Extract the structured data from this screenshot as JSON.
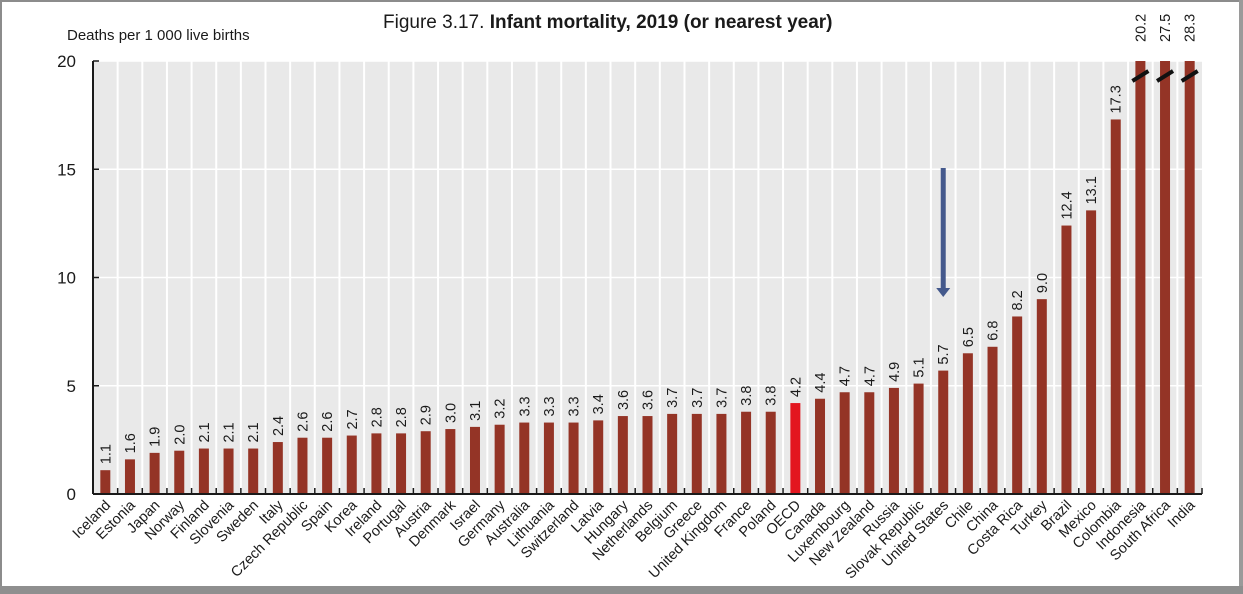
{
  "chart_data": {
    "type": "bar",
    "title_prefix": "Figure 3.17.",
    "title_main": "Infant mortality, 2019 (or nearest year)",
    "title": "Figure 3.17. Infant mortality, 2019 (or nearest year)",
    "xlabel": "",
    "ylabel": "Deaths per 1 000 live births",
    "ylim": [
      0,
      20
    ],
    "yticks": [
      0,
      5,
      10,
      15,
      20
    ],
    "grid": true,
    "truncated_above": 20,
    "categories": [
      "Iceland",
      "Estonia",
      "Japan",
      "Norway",
      "Finland",
      "Slovenia",
      "Sweden",
      "Italy",
      "Czech Republic",
      "Spain",
      "Korea",
      "Ireland",
      "Portugal",
      "Austria",
      "Denmark",
      "Israel",
      "Germany",
      "Australia",
      "Lithuania",
      "Switzerland",
      "Latvia",
      "Hungary",
      "Netherlands",
      "Belgium",
      "Greece",
      "United Kingdom",
      "France",
      "Poland",
      "OECD",
      "Canada",
      "Luxembourg",
      "New Zealand",
      "Russia",
      "Slovak Republic",
      "United States",
      "Chile",
      "China",
      "Costa Rica",
      "Turkey",
      "Brazil",
      "Mexico",
      "Colombia",
      "Indonesia",
      "South Africa",
      "India"
    ],
    "values": [
      1.1,
      1.6,
      1.9,
      2.0,
      2.1,
      2.1,
      2.1,
      2.4,
      2.6,
      2.6,
      2.7,
      2.8,
      2.8,
      2.9,
      3.0,
      3.1,
      3.2,
      3.3,
      3.3,
      3.3,
      3.4,
      3.6,
      3.6,
      3.7,
      3.7,
      3.7,
      3.8,
      3.8,
      4.2,
      4.4,
      4.7,
      4.7,
      4.9,
      5.1,
      5.7,
      6.5,
      6.8,
      8.2,
      9.0,
      12.4,
      13.1,
      17.3,
      20.2,
      27.5,
      28.3
    ],
    "value_labels": [
      "1.1",
      "1.6",
      "1.9",
      "2.0",
      "2.1",
      "2.1",
      "2.1",
      "2.4",
      "2.6",
      "2.6",
      "2.7",
      "2.8",
      "2.8",
      "2.9",
      "3.0",
      "3.1",
      "3.2",
      "3.3",
      "3.3",
      "3.3",
      "3.4",
      "3.6",
      "3.6",
      "3.7",
      "3.7",
      "3.7",
      "3.8",
      "3.8",
      "4.2",
      "4.4",
      "4.7",
      "4.7",
      "4.9",
      "5.1",
      "5.7",
      "6.5",
      "6.8",
      "8.2",
      "9.0",
      "12.4",
      "13.1",
      "17.3",
      "20.2",
      "27.5",
      "28.3"
    ],
    "highlight_category": "OECD",
    "annotation": {
      "type": "arrow",
      "points_to": "United States",
      "direction": "down"
    },
    "colors": {
      "bar": "#943426",
      "highlight_bar": "#e3161f",
      "arrow": "#44598c",
      "plot_background": "#e9e9e9",
      "grid": "#ffffff",
      "axis": "#1a1a1a",
      "break_mark": "#111111"
    }
  }
}
